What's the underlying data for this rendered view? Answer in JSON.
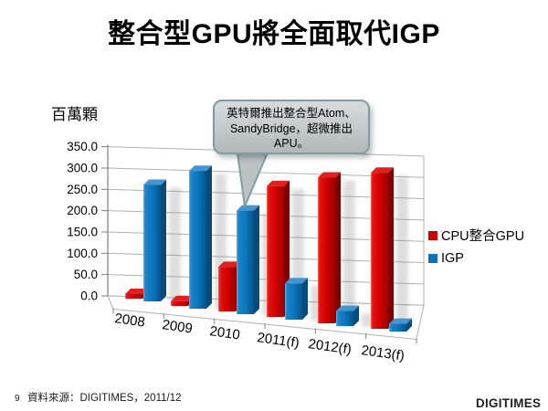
{
  "slide": {
    "title": "整合型GPU將全面取代IGP",
    "page_number": "9",
    "source_text": "資料來源：DIGITIMES，2011/12",
    "logo_text": "DIGITIMES"
  },
  "callout": {
    "text": "英特爾推出整合型Atom、SandyBridge，超微推出APU。"
  },
  "chart_data": {
    "type": "bar",
    "projection": "3d",
    "title": "整合型GPU將全面取代IGP",
    "unit_label": "百萬顆",
    "xlabel": "",
    "ylabel": "百萬顆",
    "categories": [
      "2008",
      "2009",
      "2010",
      "2011(f)",
      "2012(f)",
      "2013(f)"
    ],
    "series": [
      {
        "name": "CPU整合GPU",
        "color": "#cc0000",
        "values": [
          10,
          10,
          90,
          270,
          290,
          305
        ]
      },
      {
        "name": "IGP",
        "color": "#0b74ba",
        "values": [
          255,
          290,
          210,
          75,
          30,
          15
        ]
      }
    ],
    "ylim": [
      0,
      350
    ],
    "y_tick_step": 50,
    "y_tick_labels": [
      "0.0",
      "50.0",
      "100.0",
      "150.0",
      "200.0",
      "250.0",
      "300.0",
      "350.0"
    ],
    "grid": true,
    "legend_position": "right"
  }
}
